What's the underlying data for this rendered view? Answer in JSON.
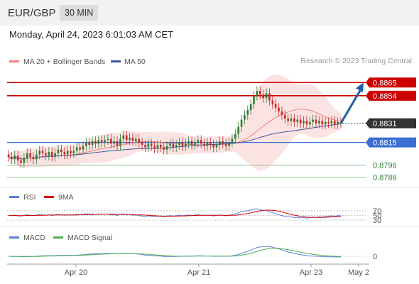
{
  "header": {
    "pair": "EUR/GBP",
    "timeframe": "30 MIN",
    "datetime": "Monday, April 24, 2023 6:01:03 AM CET"
  },
  "legend": {
    "ma20": "MA 20 + Bollinger Bands",
    "ma50": "MA 50",
    "credit": "Research © 2023 Trading Central",
    "rsi": "RSI",
    "rsi_ma": "9MA",
    "macd": "MACD",
    "macd_signal": "MACD Signal"
  },
  "colors": {
    "resistance": "#cc0000",
    "support": "#3b6fd4",
    "target": "#1f5fa8",
    "up": "#2e7d32",
    "down": "#c62828",
    "ma20": "#f08080",
    "ma50": "#3a5a9a",
    "band": "#fcdede",
    "weak_support": "#8cc08c"
  },
  "chart_data": {
    "type": "candlestick",
    "x_ticks": [
      "Apr 20",
      "Apr 21",
      "Apr 23",
      "May 2"
    ],
    "ylim": [
      0.8781,
      0.8877
    ],
    "levels": [
      {
        "label": "0.8865",
        "value": 0.8865,
        "kind": "resistance"
      },
      {
        "label": "0.8854",
        "value": 0.8854,
        "kind": "resistance"
      },
      {
        "label": "0.8831",
        "value": 0.8831,
        "kind": "last"
      },
      {
        "label": "0.8815",
        "value": 0.8815,
        "kind": "support"
      },
      {
        "label": "0.8796",
        "value": 0.8796,
        "kind": "support2"
      },
      {
        "label": "0.8786",
        "value": 0.8786,
        "kind": "support2"
      }
    ],
    "close": [
      0.8803,
      0.8801,
      0.8804,
      0.88,
      0.8798,
      0.8802,
      0.8806,
      0.8803,
      0.8801,
      0.8805,
      0.8808,
      0.8806,
      0.8804,
      0.8807,
      0.8803,
      0.8806,
      0.8809,
      0.8807,
      0.8805,
      0.8808,
      0.8806,
      0.8808,
      0.8811,
      0.8809,
      0.8812,
      0.8815,
      0.8813,
      0.8816,
      0.8814,
      0.8817,
      0.8815,
      0.8817,
      0.8818,
      0.8814,
      0.8816,
      0.8812,
      0.8818,
      0.8821,
      0.8817,
      0.8819,
      0.8816,
      0.8818,
      0.8815,
      0.8813,
      0.8811,
      0.8814,
      0.8812,
      0.881,
      0.8813,
      0.8811,
      0.8809,
      0.8812,
      0.8814,
      0.8811,
      0.8813,
      0.8815,
      0.8812,
      0.8814,
      0.8816,
      0.8813,
      0.8815,
      0.8817,
      0.8814,
      0.8812,
      0.8815,
      0.8813,
      0.8811,
      0.8813,
      0.8816,
      0.8814,
      0.8812,
      0.8815,
      0.8818,
      0.8822,
      0.8828,
      0.8834,
      0.8838,
      0.8842,
      0.8847,
      0.8854,
      0.8858,
      0.8855,
      0.8852,
      0.8856,
      0.885,
      0.8847,
      0.8844,
      0.8841,
      0.8838,
      0.8835,
      0.8833,
      0.8835,
      0.8832,
      0.8834,
      0.8831,
      0.8833,
      0.883,
      0.8832,
      0.8834,
      0.8831,
      0.8833,
      0.883,
      0.8832,
      0.8831,
      0.8833,
      0.883,
      0.8832,
      0.8831
    ],
    "projection": {
      "from": 0.8831,
      "to": 0.8865
    },
    "rsi": {
      "ticks": [
        "70",
        "50",
        "30"
      ],
      "ylim": [
        0,
        100
      ]
    },
    "macd": {
      "ticks": [
        "0"
      ]
    }
  }
}
